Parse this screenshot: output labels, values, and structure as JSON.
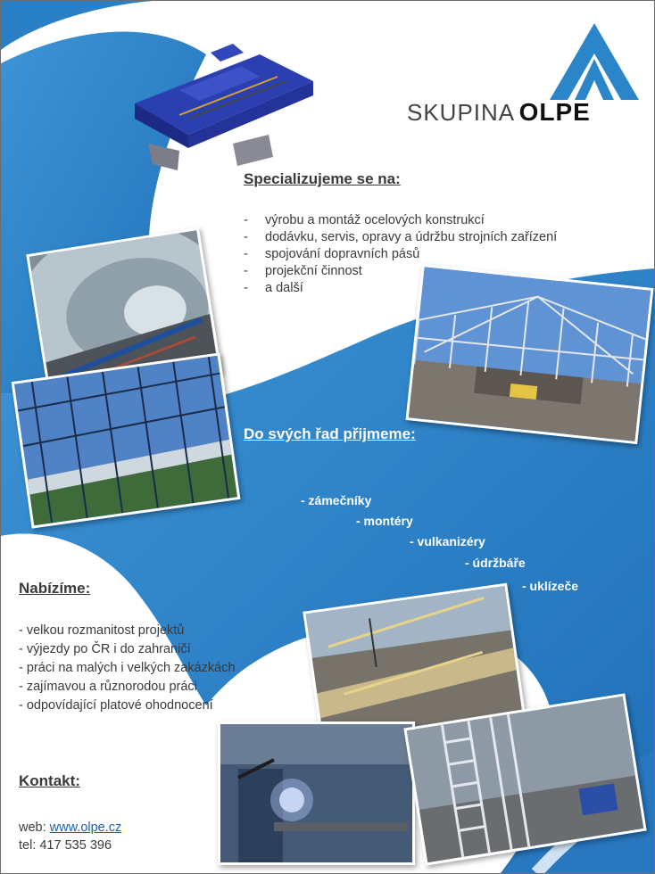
{
  "brand": {
    "name_light": "SKUPINA",
    "name_bold": "OLPE",
    "primary_color": "#2a80c6",
    "dark_blue": "#1b5fa6"
  },
  "specializujeme": {
    "title": "Specializujeme se na:",
    "items": [
      "výrobu a montáž ocelových konstrukcí",
      "dodávku, servis, opravy a údržbu strojních zařízení",
      "spojování dopravních pásů",
      "projekční činnost",
      "a další"
    ],
    "bullet": "-"
  },
  "prijmeme": {
    "title": "Do svých řad přijmeme:",
    "roles": [
      "- zámečníky",
      "- montéry",
      "- vulkanizéry",
      "- údržbáře",
      "- uklízeče"
    ]
  },
  "nabizime": {
    "title": "Nabízíme:",
    "items": [
      "- velkou rozmanitost projektů",
      "- výjezdy po ČR i do zahraničí",
      "- práci na malých i velkých zakázkách",
      "- zajímavou a různorodou práci",
      "- odpovídající platové ohodnocení"
    ]
  },
  "kontakt": {
    "title": "Kontakt:",
    "web_label": "web: ",
    "web_url": "www.olpe.cz",
    "tel_label": "tel: 417 535 396"
  },
  "images": [
    {
      "name": "conveyor-machine-illustration"
    },
    {
      "name": "tunnel-conveyor-photo"
    },
    {
      "name": "steel-roof-construction-photo"
    },
    {
      "name": "fence-structure-photo"
    },
    {
      "name": "crane-conveyor-photo"
    },
    {
      "name": "welding-workshop-photo"
    },
    {
      "name": "ladder-scaffold-photo"
    }
  ]
}
